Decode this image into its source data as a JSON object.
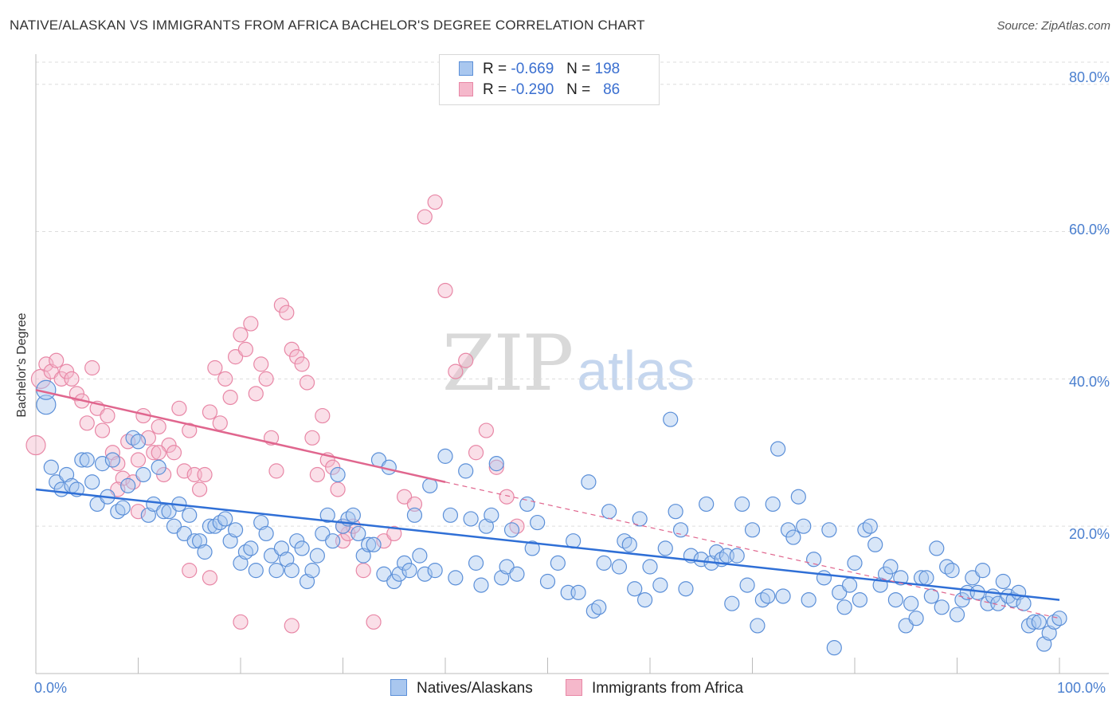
{
  "title": "NATIVE/ALASKAN VS IMMIGRANTS FROM AFRICA BACHELOR'S DEGREE CORRELATION CHART",
  "source": "Source: ZipAtlas.com",
  "watermark": {
    "zip": "ZIP",
    "atlas": "atlas"
  },
  "legend_top": [
    {
      "r_label": "R =",
      "r_value": "-0.669",
      "n_label": "N =",
      "n_value": "198"
    },
    {
      "r_label": "R =",
      "r_value": "-0.290",
      "n_label": "N =",
      "n_value": "86"
    }
  ],
  "colors": {
    "blue_fill": "#a9c7ef",
    "blue_stroke": "#5b8fd8",
    "blue_line": "#2f6fd6",
    "pink_fill": "#f5b8cb",
    "pink_stroke": "#e887a6",
    "pink_line": "#e0668e",
    "tick_text": "#4a7fcf",
    "grid": "#dddddd"
  },
  "chart_data": {
    "type": "scatter",
    "title": "NATIVE/ALASKAN VS IMMIGRANTS FROM AFRICA BACHELOR'S DEGREE CORRELATION CHART",
    "xlabel": "",
    "ylabel": "Bachelor's Degree",
    "xlim": [
      0,
      100
    ],
    "ylim": [
      0,
      83
    ],
    "x_tick_labels": [
      "0.0%",
      "100.0%"
    ],
    "y_ticks": [
      20,
      40,
      60,
      80
    ],
    "y_tick_labels": [
      "20.0%",
      "40.0%",
      "60.0%",
      "80.0%"
    ],
    "grid": true,
    "legend_position": "bottom",
    "series": [
      {
        "name": "Natives/Alaskans",
        "color": "#a9c7ef",
        "r": -0.669,
        "n": 198,
        "trend": {
          "x": [
            0,
            100
          ],
          "y": [
            25.0,
            10.0
          ],
          "style": "solid"
        },
        "points": [
          [
            1,
            36.5
          ],
          [
            1,
            38.5
          ],
          [
            1.5,
            28
          ],
          [
            2,
            26
          ],
          [
            2.5,
            25
          ],
          [
            3,
            27
          ],
          [
            3.5,
            25.5
          ],
          [
            4,
            25
          ],
          [
            4.5,
            29
          ],
          [
            5,
            29
          ],
          [
            5.5,
            26
          ],
          [
            6,
            23
          ],
          [
            6.5,
            28.5
          ],
          [
            7,
            24
          ],
          [
            7.5,
            29
          ],
          [
            8,
            22
          ],
          [
            8.5,
            22.5
          ],
          [
            9,
            25.5
          ],
          [
            9.5,
            32
          ],
          [
            10,
            31.5
          ],
          [
            10.5,
            27
          ],
          [
            11,
            21.5
          ],
          [
            11.5,
            23
          ],
          [
            12,
            28
          ],
          [
            12.5,
            22
          ],
          [
            13,
            22
          ],
          [
            13.5,
            20
          ],
          [
            14,
            23
          ],
          [
            14.5,
            19
          ],
          [
            15,
            21.5
          ],
          [
            15.5,
            18
          ],
          [
            16,
            18
          ],
          [
            16.5,
            16.5
          ],
          [
            17,
            20
          ],
          [
            17.5,
            20
          ],
          [
            18,
            20.5
          ],
          [
            18.5,
            21
          ],
          [
            19,
            18
          ],
          [
            19.5,
            19.5
          ],
          [
            20,
            15
          ],
          [
            20.5,
            16.5
          ],
          [
            21,
            17
          ],
          [
            21.5,
            14
          ],
          [
            22,
            20.5
          ],
          [
            22.5,
            19
          ],
          [
            23,
            16
          ],
          [
            23.5,
            14
          ],
          [
            24,
            17
          ],
          [
            24.5,
            15.5
          ],
          [
            25,
            14
          ],
          [
            25.5,
            18
          ],
          [
            26,
            17
          ],
          [
            26.5,
            12.5
          ],
          [
            27,
            14
          ],
          [
            27.5,
            16
          ],
          [
            28,
            19
          ],
          [
            28.5,
            21.5
          ],
          [
            29,
            18
          ],
          [
            29.5,
            27
          ],
          [
            30,
            20
          ],
          [
            30.5,
            21
          ],
          [
            31,
            21.5
          ],
          [
            31.5,
            19
          ],
          [
            32,
            16
          ],
          [
            32.5,
            17.5
          ],
          [
            33,
            17.5
          ],
          [
            33.5,
            29
          ],
          [
            34,
            13.5
          ],
          [
            34.5,
            28
          ],
          [
            35,
            12.5
          ],
          [
            35.5,
            13.5
          ],
          [
            36,
            15
          ],
          [
            36.5,
            14
          ],
          [
            37,
            21.5
          ],
          [
            37.5,
            16
          ],
          [
            38,
            13.5
          ],
          [
            38.5,
            25.5
          ],
          [
            39,
            14
          ],
          [
            40,
            29.5
          ],
          [
            40.5,
            21.5
          ],
          [
            41,
            13
          ],
          [
            42,
            27.5
          ],
          [
            42.5,
            21
          ],
          [
            43,
            15
          ],
          [
            43.5,
            12
          ],
          [
            44,
            20
          ],
          [
            44.5,
            21.5
          ],
          [
            45,
            28.5
          ],
          [
            45.5,
            13
          ],
          [
            46,
            14.5
          ],
          [
            46.5,
            19.5
          ],
          [
            47,
            13.5
          ],
          [
            48,
            23
          ],
          [
            48.5,
            17
          ],
          [
            49,
            20.5
          ],
          [
            50,
            12.5
          ],
          [
            51,
            15
          ],
          [
            52,
            11
          ],
          [
            52.5,
            18
          ],
          [
            53,
            11
          ],
          [
            54,
            26
          ],
          [
            54.5,
            8.5
          ],
          [
            55,
            9
          ],
          [
            55.5,
            15
          ],
          [
            56,
            22
          ],
          [
            57,
            14.5
          ],
          [
            57.5,
            18
          ],
          [
            58,
            17.5
          ],
          [
            58.5,
            11.5
          ],
          [
            59,
            21
          ],
          [
            59.5,
            10
          ],
          [
            60,
            14.5
          ],
          [
            61,
            12
          ],
          [
            61.5,
            17
          ],
          [
            62,
            34.5
          ],
          [
            62.5,
            22
          ],
          [
            63,
            19.5
          ],
          [
            63.5,
            11.5
          ],
          [
            64,
            16
          ],
          [
            65,
            15.5
          ],
          [
            65.5,
            23
          ],
          [
            66,
            15
          ],
          [
            66.5,
            16.5
          ],
          [
            67,
            15.5
          ],
          [
            67.5,
            16
          ],
          [
            68,
            9.5
          ],
          [
            68.5,
            16
          ],
          [
            69,
            23
          ],
          [
            69.5,
            12
          ],
          [
            70,
            19.5
          ],
          [
            70.5,
            6.5
          ],
          [
            71,
            10
          ],
          [
            71.5,
            10.5
          ],
          [
            72,
            23
          ],
          [
            72.5,
            30.5
          ],
          [
            73,
            10.5
          ],
          [
            73.5,
            19.5
          ],
          [
            74,
            18.5
          ],
          [
            74.5,
            24
          ],
          [
            75,
            20
          ],
          [
            75.5,
            10
          ],
          [
            76,
            15.5
          ],
          [
            77,
            13
          ],
          [
            77.5,
            19.5
          ],
          [
            78,
            3.5
          ],
          [
            78.5,
            11
          ],
          [
            79,
            9
          ],
          [
            79.5,
            12
          ],
          [
            80,
            15
          ],
          [
            80.5,
            10
          ],
          [
            81,
            19.5
          ],
          [
            81.5,
            20
          ],
          [
            82,
            17.5
          ],
          [
            82.5,
            12
          ],
          [
            83,
            13.5
          ],
          [
            83.5,
            14.5
          ],
          [
            84,
            10
          ],
          [
            84.5,
            13
          ],
          [
            85,
            6.5
          ],
          [
            85.5,
            9.5
          ],
          [
            86,
            7.5
          ],
          [
            86.5,
            13
          ],
          [
            87,
            13
          ],
          [
            87.5,
            10.5
          ],
          [
            88,
            17
          ],
          [
            88.5,
            9
          ],
          [
            89,
            14.5
          ],
          [
            89.5,
            14
          ],
          [
            90,
            8
          ],
          [
            90.5,
            10
          ],
          [
            91,
            11
          ],
          [
            91.5,
            13
          ],
          [
            92,
            11
          ],
          [
            92.5,
            14
          ],
          [
            93,
            9.5
          ],
          [
            93.5,
            10.5
          ],
          [
            94,
            9.5
          ],
          [
            94.5,
            12.5
          ],
          [
            95,
            10.5
          ],
          [
            95.5,
            10
          ],
          [
            96,
            11
          ],
          [
            96.5,
            9.5
          ],
          [
            97,
            6.5
          ],
          [
            97.5,
            7
          ],
          [
            98,
            7
          ],
          [
            98.5,
            4
          ],
          [
            99,
            5.5
          ],
          [
            99.5,
            7
          ],
          [
            100,
            7.5
          ]
        ]
      },
      {
        "name": "Immigrants from Africa",
        "color": "#f5b8cb",
        "r": -0.29,
        "n": 86,
        "trend": {
          "x": [
            0,
            40
          ],
          "y": [
            38.5,
            26.0
          ],
          "style": "solid"
        },
        "trend_ext": {
          "x": [
            40,
            100
          ],
          "y": [
            26.0,
            7.5
          ],
          "style": "dashed"
        },
        "points": [
          [
            0,
            31
          ],
          [
            0.5,
            40
          ],
          [
            1,
            42
          ],
          [
            1.5,
            41
          ],
          [
            2,
            42.5
          ],
          [
            2.5,
            40
          ],
          [
            3,
            41
          ],
          [
            3.5,
            40
          ],
          [
            4,
            38
          ],
          [
            4.5,
            37
          ],
          [
            5,
            34
          ],
          [
            5.5,
            41.5
          ],
          [
            6,
            36
          ],
          [
            6.5,
            33
          ],
          [
            7,
            35
          ],
          [
            7.5,
            30
          ],
          [
            8,
            28.5
          ],
          [
            8.5,
            26.5
          ],
          [
            9,
            31.5
          ],
          [
            9.5,
            26
          ],
          [
            10,
            29
          ],
          [
            10.5,
            35
          ],
          [
            11,
            32
          ],
          [
            11.5,
            30
          ],
          [
            12,
            33.5
          ],
          [
            12.5,
            27
          ],
          [
            13,
            31
          ],
          [
            13.5,
            30
          ],
          [
            14,
            36
          ],
          [
            14.5,
            27.5
          ],
          [
            15,
            33
          ],
          [
            15.5,
            27
          ],
          [
            16,
            25
          ],
          [
            16.5,
            27
          ],
          [
            17,
            35.5
          ],
          [
            17.5,
            41.5
          ],
          [
            18,
            34
          ],
          [
            18.5,
            40
          ],
          [
            19,
            37.5
          ],
          [
            19.5,
            43
          ],
          [
            20,
            46
          ],
          [
            20.5,
            44
          ],
          [
            21,
            47.5
          ],
          [
            21.5,
            38
          ],
          [
            22,
            42
          ],
          [
            22.5,
            40
          ],
          [
            23,
            32
          ],
          [
            23.5,
            27.5
          ],
          [
            24,
            50
          ],
          [
            24.5,
            49
          ],
          [
            25,
            44
          ],
          [
            25.5,
            43
          ],
          [
            26,
            42
          ],
          [
            26.5,
            39.5
          ],
          [
            27,
            32
          ],
          [
            27.5,
            27
          ],
          [
            28,
            35
          ],
          [
            28.5,
            29
          ],
          [
            29,
            28
          ],
          [
            29.5,
            25
          ],
          [
            30,
            18
          ],
          [
            30.5,
            19
          ],
          [
            31,
            20
          ],
          [
            32,
            14
          ],
          [
            33,
            7
          ],
          [
            34,
            18
          ],
          [
            35,
            19
          ],
          [
            36,
            24
          ],
          [
            37,
            23
          ],
          [
            38,
            62
          ],
          [
            39,
            64
          ],
          [
            40,
            52
          ],
          [
            41,
            41
          ],
          [
            42,
            42.5
          ],
          [
            43,
            30
          ],
          [
            44,
            33
          ],
          [
            45,
            28
          ],
          [
            46,
            24
          ],
          [
            47,
            20
          ],
          [
            15,
            14
          ],
          [
            17,
            13
          ],
          [
            20,
            7
          ],
          [
            25,
            6.5
          ],
          [
            30,
            20
          ],
          [
            8,
            25
          ],
          [
            10,
            22
          ],
          [
            12,
            30
          ]
        ]
      }
    ]
  },
  "legend_bottom": [
    {
      "label": "Natives/Alaskans"
    },
    {
      "label": "Immigrants from Africa"
    }
  ]
}
